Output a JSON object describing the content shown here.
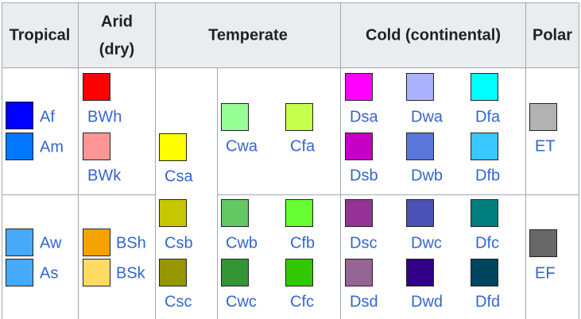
{
  "headers": {
    "tropical": "Tropical",
    "arid_line1": "Arid",
    "arid_line2": "(dry)",
    "temperate": "Temperate",
    "cold": "Cold (continental)",
    "polar": "Polar"
  },
  "climates": [
    {
      "code": "Af",
      "color": "#0000fe"
    },
    {
      "code": "Am",
      "color": "#0077ff"
    },
    {
      "code": "Aw",
      "color": "#46a9fa"
    },
    {
      "code": "As",
      "color": "#46a9fa"
    },
    {
      "code": "BWh",
      "color": "#fe0000"
    },
    {
      "code": "BWk",
      "color": "#fe9695"
    },
    {
      "code": "BSh",
      "color": "#f5a301"
    },
    {
      "code": "BSk",
      "color": "#ffdb63"
    },
    {
      "code": "Csa",
      "color": "#ffff00"
    },
    {
      "code": "Csb",
      "color": "#c6c700"
    },
    {
      "code": "Csc",
      "color": "#969600"
    },
    {
      "code": "Cwa",
      "color": "#96ff96"
    },
    {
      "code": "Cwb",
      "color": "#63c764"
    },
    {
      "code": "Cwc",
      "color": "#329633"
    },
    {
      "code": "Cfa",
      "color": "#c6ff4e"
    },
    {
      "code": "Cfb",
      "color": "#66ff33"
    },
    {
      "code": "Cfc",
      "color": "#33c701"
    },
    {
      "code": "Dsa",
      "color": "#ff00fe"
    },
    {
      "code": "Dsb",
      "color": "#c600c7"
    },
    {
      "code": "Dsc",
      "color": "#963295"
    },
    {
      "code": "Dsd",
      "color": "#966495"
    },
    {
      "code": "Dwa",
      "color": "#abb1ff"
    },
    {
      "code": "Dwb",
      "color": "#5a77db"
    },
    {
      "code": "Dwc",
      "color": "#4c51b5"
    },
    {
      "code": "Dwd",
      "color": "#320087"
    },
    {
      "code": "Dfa",
      "color": "#00ffff"
    },
    {
      "code": "Dfb",
      "color": "#38c7ff"
    },
    {
      "code": "Dfc",
      "color": "#007e7d"
    },
    {
      "code": "Dfd",
      "color": "#00455e"
    },
    {
      "code": "ET",
      "color": "#b2b2b2"
    },
    {
      "code": "EF",
      "color": "#686868"
    }
  ]
}
